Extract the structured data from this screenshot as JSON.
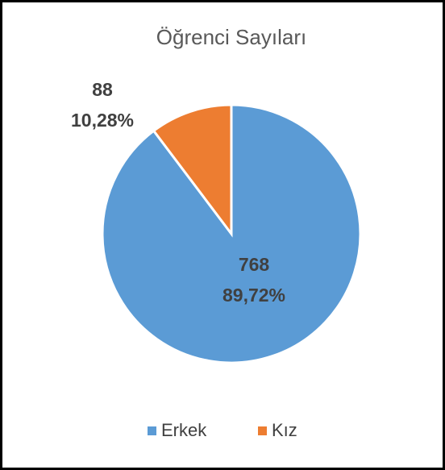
{
  "chart_data": {
    "type": "pie",
    "title": "Öğrenci Sayıları",
    "categories": [
      "Erkek",
      "Kız"
    ],
    "values": [
      768,
      88
    ],
    "percentages": [
      89.72,
      10.28
    ],
    "percent_labels": [
      "89,72%",
      "10,28%"
    ],
    "colors": [
      "#5b9bd5",
      "#ed7d31"
    ],
    "legend": "bottom"
  }
}
